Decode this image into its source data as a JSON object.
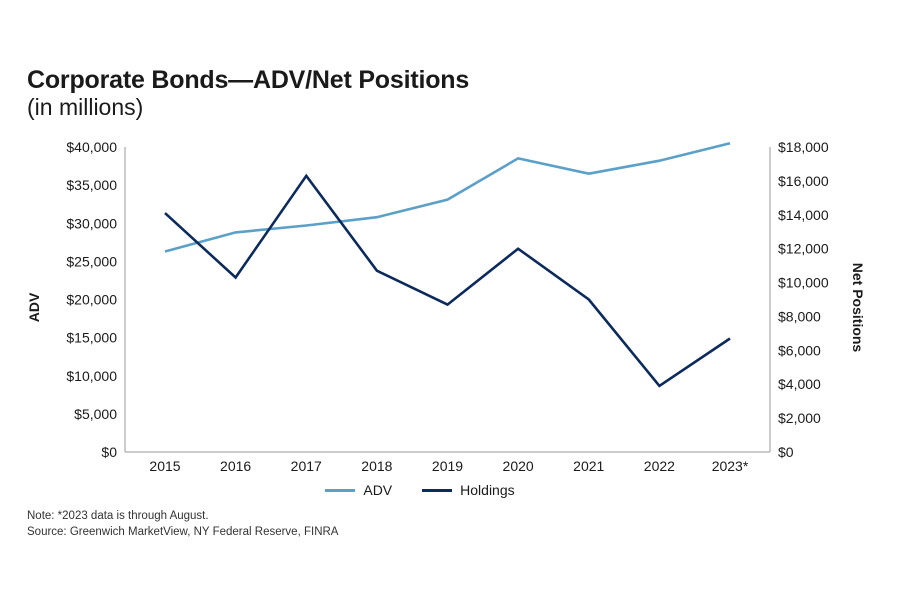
{
  "title": "Corporate Bonds—ADV/Net Positions",
  "subtitle": "(in millions)",
  "colors": {
    "adv": "#5aa0c8",
    "holdings": "#0d2a5c",
    "axis": "#9a9a9a"
  },
  "chart_data": {
    "type": "line",
    "categories": [
      "2015",
      "2016",
      "2017",
      "2018",
      "2019",
      "2020",
      "2021",
      "2022",
      "2023*"
    ],
    "series": [
      {
        "name": "ADV",
        "axis": "left",
        "values": [
          26300,
          28800,
          29700,
          30800,
          33100,
          38500,
          36500,
          38200,
          40500
        ]
      },
      {
        "name": "Holdings",
        "axis": "right",
        "values": [
          14100,
          10300,
          16300,
          10700,
          8700,
          12000,
          9000,
          3900,
          6700
        ]
      }
    ],
    "ylabel": "ADV",
    "y2label": "Net Positions",
    "ylim": [
      0,
      40000
    ],
    "y2lim": [
      0,
      18000
    ],
    "yticks": [
      "$0",
      "$5,000",
      "$10,000",
      "$15,000",
      "$20,000",
      "$25,000",
      "$30,000",
      "$35,000",
      "$40,000"
    ],
    "y2ticks": [
      "$0",
      "$2,000",
      "$4,000",
      "$6,000",
      "$8,000",
      "$10,000",
      "$12,000",
      "$14,000",
      "$16,000",
      "$18,000"
    ],
    "legend": [
      "ADV",
      "Holdings"
    ],
    "legend_position": "bottom",
    "grid": false
  },
  "notes": {
    "note": "Note: *2023 data is through August.",
    "source": "Source: Greenwich MarketView, NY Federal Reserve, FINRA"
  }
}
